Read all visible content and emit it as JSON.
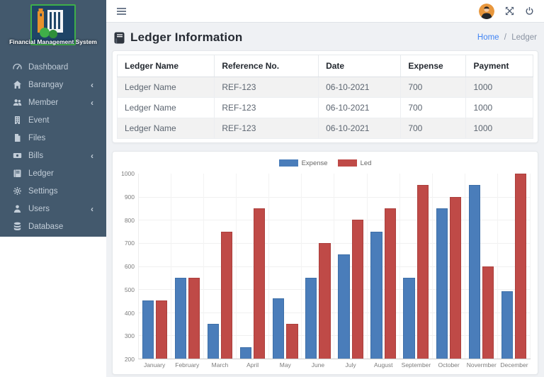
{
  "sidebar": {
    "logo_title": "Financial Management System",
    "items": [
      {
        "label": "Dashboard",
        "icon": "speedometer-icon",
        "has_submenu": false
      },
      {
        "label": "Barangay",
        "icon": "home-icon",
        "has_submenu": true
      },
      {
        "label": "Member",
        "icon": "group-icon",
        "has_submenu": true
      },
      {
        "label": "Event",
        "icon": "building-icon",
        "has_submenu": false
      },
      {
        "label": "Files",
        "icon": "file-icon",
        "has_submenu": false
      },
      {
        "label": "Bills",
        "icon": "money-icon",
        "has_submenu": true
      },
      {
        "label": "Ledger",
        "icon": "book-icon",
        "has_submenu": false
      },
      {
        "label": "Settings",
        "icon": "gear-icon",
        "has_submenu": false
      },
      {
        "label": "Users",
        "icon": "user-icon",
        "has_submenu": true
      },
      {
        "label": "Database",
        "icon": "database-icon",
        "has_submenu": false
      }
    ]
  },
  "topbar": {
    "icons": [
      "hamburger-menu-icon",
      "user-avatar",
      "fullscreen-expand-icon",
      "power-icon"
    ]
  },
  "page": {
    "title": "Ledger Information"
  },
  "breadcrumb": {
    "home": "Home",
    "separator": "/",
    "current": "Ledger"
  },
  "table": {
    "headers": [
      "Ledger Name",
      "Reference No.",
      "Date",
      "Expense",
      "Payment"
    ],
    "rows": [
      [
        "Ledger Name",
        "REF-123",
        "06-10-2021",
        "700",
        "1000"
      ],
      [
        "Ledger Name",
        "REF-123",
        "06-10-2021",
        "700",
        "1000"
      ],
      [
        "Ledger Name",
        "REF-123",
        "06-10-2021",
        "700",
        "1000"
      ]
    ]
  },
  "chart_data": {
    "type": "bar",
    "categories": [
      "January",
      "February",
      "March",
      "April",
      "May",
      "June",
      "July",
      "August",
      "September",
      "October",
      "Novermber",
      "December"
    ],
    "series": [
      {
        "name": "Expense",
        "color": "#4a7dba",
        "border": "#3e6fa8",
        "values": [
          450,
          550,
          350,
          250,
          460,
          550,
          650,
          750,
          550,
          850,
          950,
          490
        ]
      },
      {
        "name": "Led",
        "color": "#bf4a47",
        "border": "#ab3f3c",
        "values": [
          450,
          550,
          750,
          850,
          350,
          700,
          800,
          850,
          950,
          900,
          600,
          1000
        ]
      }
    ],
    "ylim": [
      200,
      1000
    ],
    "ytick_step": 100,
    "legend_position": "top",
    "grid": true
  },
  "colors": {
    "sidebar_bg": "#43596d",
    "link_blue": "#4285f4",
    "stripe": "#f2f2f2",
    "avatar_bg": "#e8973d"
  }
}
